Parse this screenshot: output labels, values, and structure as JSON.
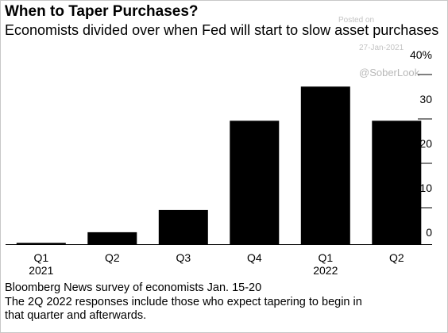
{
  "header": {
    "title": "When to Taper Purchases?",
    "subtitle": "Economists divided over when Fed will start to slow asset purchases"
  },
  "watermark": {
    "posted_label": "Posted on",
    "date": "27-Jan-2021",
    "handle": "@SoberLook"
  },
  "footer": {
    "source": "Bloomberg News survey of economists Jan. 15-20",
    "note": "The 2Q 2022 responses include those who expect tapering to begin in that quarter and afterwards."
  },
  "chart_data": {
    "type": "bar",
    "categories": [
      "Q1",
      "Q2",
      "Q3",
      "Q4",
      "Q1",
      "Q2"
    ],
    "category_years": [
      "2021",
      "",
      "",
      "",
      "2022",
      ""
    ],
    "values": [
      0.3,
      2.7,
      7.7,
      27.8,
      35.5,
      27.8
    ],
    "ylim": [
      0,
      40
    ],
    "yticks": [
      0,
      10,
      20,
      30,
      40
    ],
    "ytick_labels": [
      "0",
      "10",
      "20",
      "30",
      "40%"
    ],
    "yaxis_position": "right",
    "grid": false,
    "bar_color": "#000000"
  }
}
